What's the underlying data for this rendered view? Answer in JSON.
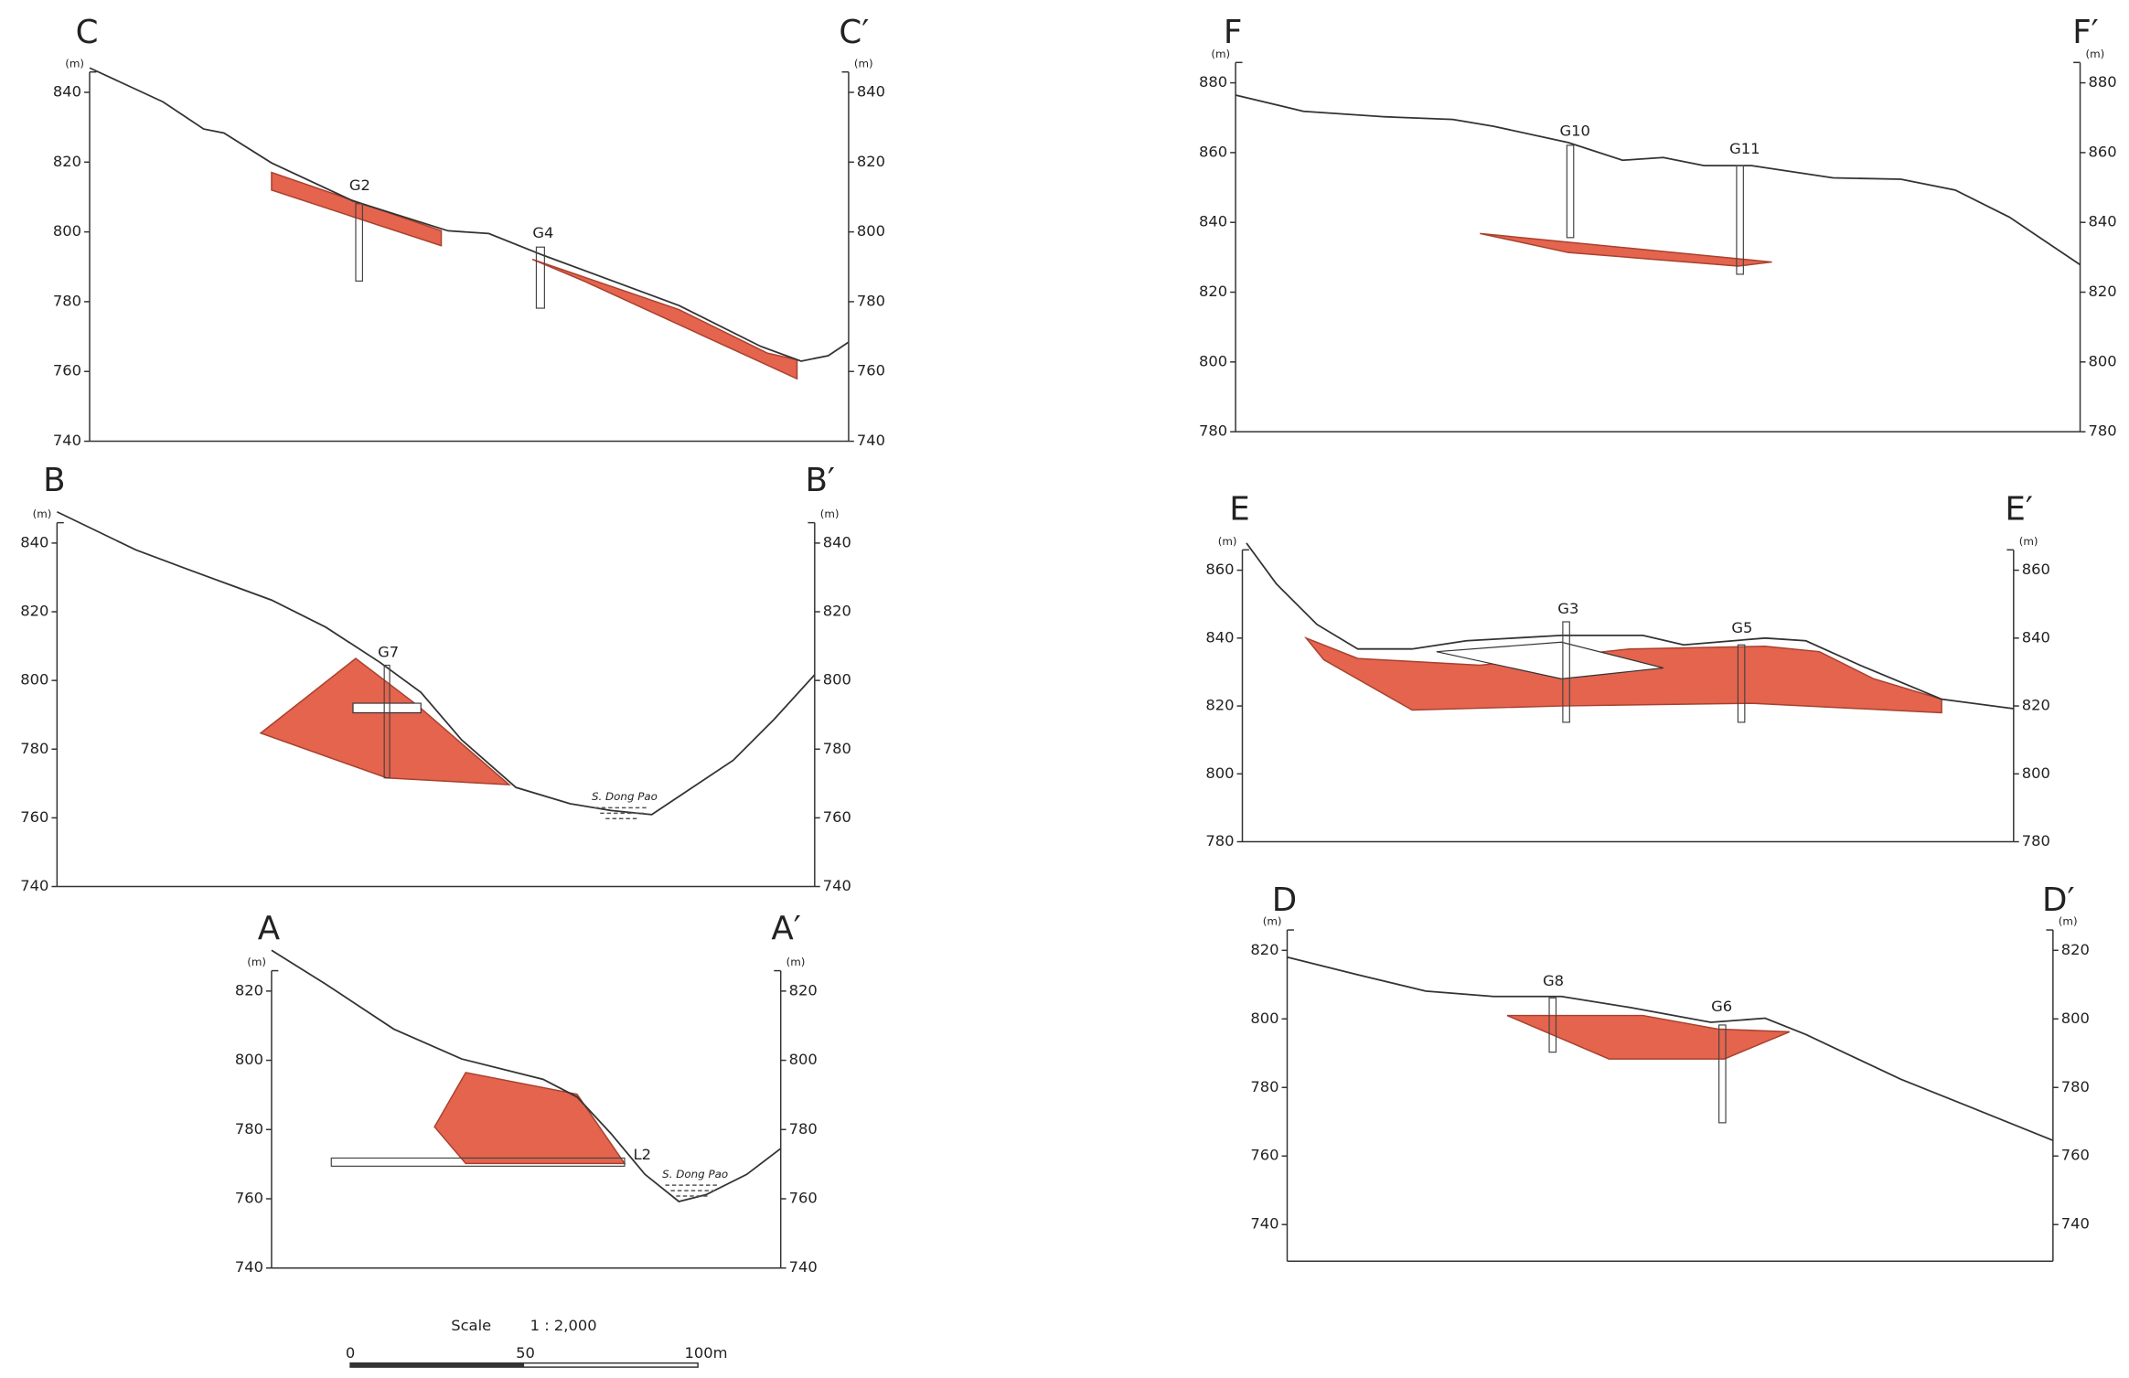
{
  "sections": [
    {
      "label": "C",
      "label_end": "C′",
      "unit": "(m)",
      "ticks": [
        840,
        820,
        800,
        780,
        760,
        740
      ],
      "boreholes": [
        "G2",
        "G4"
      ],
      "notes": []
    },
    {
      "label": "B",
      "label_end": "B′",
      "unit": "(m)",
      "ticks": [
        840,
        820,
        800,
        780,
        760,
        740
      ],
      "boreholes": [
        "G7"
      ],
      "notes": [
        "S. Dong Pao"
      ]
    },
    {
      "label": "A",
      "label_end": "A′",
      "unit": "(m)",
      "ticks": [
        820,
        800,
        780,
        760,
        740
      ],
      "boreholes": [
        "L2"
      ],
      "notes": [
        "S. Dong Pao"
      ]
    },
    {
      "label": "F",
      "label_end": "F′",
      "unit": "(m)",
      "ticks": [
        880,
        860,
        840,
        820,
        800,
        780
      ],
      "boreholes": [
        "G10",
        "G11"
      ],
      "notes": []
    },
    {
      "label": "E",
      "label_end": "E′",
      "unit": "(m)",
      "ticks": [
        860,
        840,
        820,
        800,
        780
      ],
      "boreholes": [
        "G3",
        "G5"
      ],
      "notes": []
    },
    {
      "label": "D",
      "label_end": "D′",
      "unit": "(m)",
      "ticks": [
        820,
        800,
        780,
        760,
        740
      ],
      "boreholes": [
        "G8",
        "G6"
      ],
      "notes": []
    }
  ],
  "scale": {
    "title": "Scale",
    "ratio": "1 : 2,000",
    "ticks": [
      "0",
      "50",
      "100m"
    ]
  }
}
